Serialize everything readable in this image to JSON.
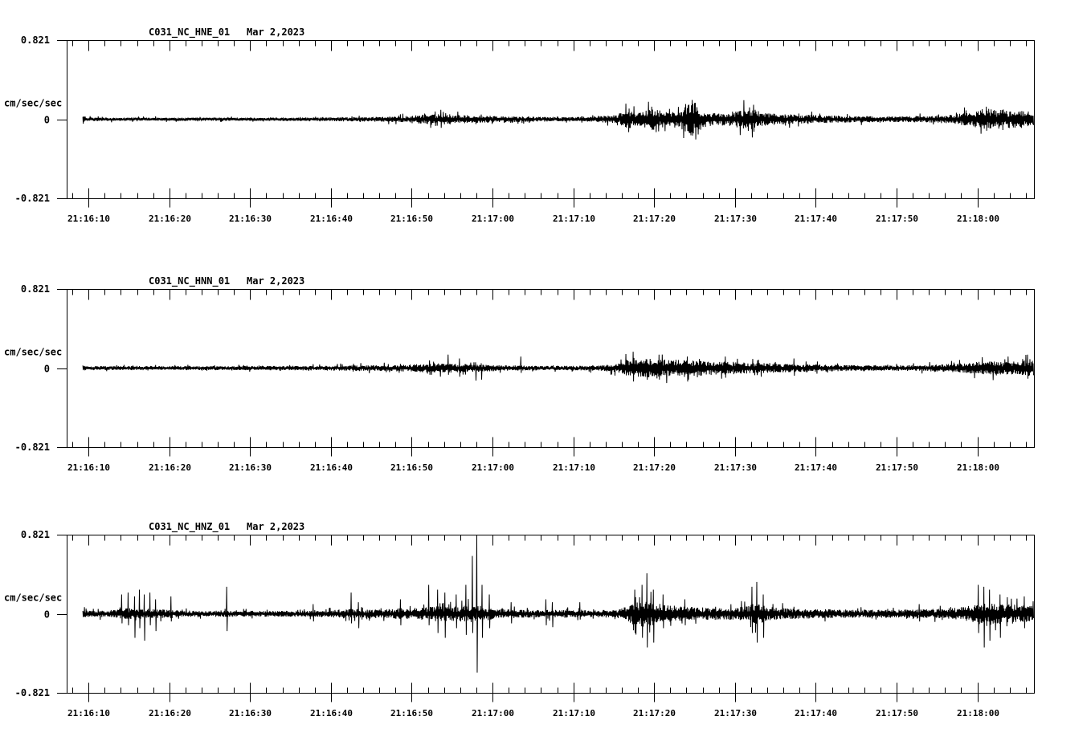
{
  "figure": {
    "background": "#ffffff",
    "trace_color": "#000000",
    "axis_color": "#000000"
  },
  "chart_data": {
    "type": "line",
    "subtype": "seismogram-3-component",
    "ylabel": "cm/sec/sec",
    "ylim": [
      -0.821,
      0.821
    ],
    "ytick_labels": [
      "0.821",
      "0",
      "-0.821"
    ],
    "xtick_labels": [
      "21:16:10",
      "21:16:20",
      "21:16:30",
      "21:16:40",
      "21:16:50",
      "21:17:00",
      "21:17:10",
      "21:17:20",
      "21:17:30",
      "21:17:40",
      "21:17:50",
      "21:18:00"
    ],
    "time_window_sec": 119.7,
    "first_major_tick_sec": 2.7,
    "major_tick_interval_sec": 10,
    "minor_tick_interval_sec": 2,
    "grid": false,
    "legend": false,
    "panels": [
      {
        "title": "C031_NC_HNE_01",
        "date": "Mar 2,2023",
        "seed": 7,
        "trace_start_sec": 2.0,
        "envelope": [
          [
            2.0,
            0.05
          ],
          [
            2.5,
            0.02
          ],
          [
            6,
            0.017
          ],
          [
            12,
            0.016
          ],
          [
            20,
            0.017
          ],
          [
            28,
            0.018
          ],
          [
            34,
            0.022
          ],
          [
            38,
            0.026
          ],
          [
            42,
            0.032
          ],
          [
            44.5,
            0.05
          ],
          [
            46.5,
            0.055
          ],
          [
            48.5,
            0.048
          ],
          [
            51,
            0.038
          ],
          [
            54,
            0.032
          ],
          [
            58,
            0.026
          ],
          [
            62,
            0.024
          ],
          [
            65,
            0.028
          ],
          [
            68,
            0.045
          ],
          [
            69.5,
            0.1
          ],
          [
            70.5,
            0.07
          ],
          [
            72.5,
            0.115
          ],
          [
            74,
            0.08
          ],
          [
            76,
            0.09
          ],
          [
            77.5,
            0.19
          ],
          [
            78.5,
            0.1
          ],
          [
            80,
            0.062
          ],
          [
            82,
            0.07
          ],
          [
            84.5,
            0.125
          ],
          [
            86,
            0.07
          ],
          [
            88,
            0.055
          ],
          [
            91,
            0.046
          ],
          [
            94,
            0.04
          ],
          [
            98,
            0.033
          ],
          [
            103,
            0.03
          ],
          [
            107,
            0.036
          ],
          [
            110,
            0.05
          ],
          [
            112,
            0.08
          ],
          [
            113.5,
            0.11
          ],
          [
            115,
            0.1
          ],
          [
            116.5,
            0.092
          ],
          [
            118,
            0.086
          ],
          [
            119.7,
            0.08
          ]
        ],
        "spikes": [
          [
            45.6,
            0.08,
            -0.07
          ],
          [
            69.6,
            0.11,
            -0.09
          ],
          [
            72.4,
            0.13,
            -0.11
          ],
          [
            77.4,
            0.2,
            -0.17
          ],
          [
            77.8,
            0.17,
            -0.21
          ],
          [
            85.0,
            0.15,
            -0.13
          ],
          [
            113.8,
            0.13,
            -0.12
          ]
        ]
      },
      {
        "title": "C031_NC_HNN_01",
        "date": "Mar 2,2023",
        "seed": 13,
        "trace_start_sec": 2.0,
        "envelope": [
          [
            2.0,
            0.04
          ],
          [
            2.5,
            0.022
          ],
          [
            8,
            0.02
          ],
          [
            14,
            0.02
          ],
          [
            22,
            0.022
          ],
          [
            30,
            0.024
          ],
          [
            36,
            0.028
          ],
          [
            40,
            0.032
          ],
          [
            43,
            0.04
          ],
          [
            45.5,
            0.05
          ],
          [
            47.5,
            0.047
          ],
          [
            50,
            0.04
          ],
          [
            52,
            0.035
          ],
          [
            55,
            0.028
          ],
          [
            59,
            0.023
          ],
          [
            63,
            0.023
          ],
          [
            66,
            0.03
          ],
          [
            68.5,
            0.05
          ],
          [
            70,
            0.12
          ],
          [
            71,
            0.09
          ],
          [
            72.5,
            0.1
          ],
          [
            74,
            0.09
          ],
          [
            76,
            0.085
          ],
          [
            78,
            0.08
          ],
          [
            80,
            0.075
          ],
          [
            82,
            0.066
          ],
          [
            84,
            0.06
          ],
          [
            86,
            0.056
          ],
          [
            88,
            0.05
          ],
          [
            91,
            0.042
          ],
          [
            94,
            0.036
          ],
          [
            98,
            0.03
          ],
          [
            102,
            0.028
          ],
          [
            106,
            0.032
          ],
          [
            110,
            0.045
          ],
          [
            112,
            0.06
          ],
          [
            114,
            0.07
          ],
          [
            116,
            0.066
          ],
          [
            118,
            0.07
          ],
          [
            119.7,
            0.088
          ]
        ],
        "spikes": [
          [
            44.9,
            0.08,
            -0.07
          ],
          [
            47.2,
            0.14,
            -0.07
          ],
          [
            48.6,
            0.1,
            -0.09
          ],
          [
            50.6,
            0.06,
            -0.13
          ],
          [
            51.3,
            0.05,
            -0.12
          ],
          [
            56.2,
            0.12,
            -0.05
          ],
          [
            70.1,
            0.17,
            -0.14
          ],
          [
            73.3,
            0.14,
            -0.12
          ],
          [
            76.8,
            0.12,
            -0.14
          ],
          [
            81.5,
            0.12,
            -0.1
          ],
          [
            90.0,
            0.1,
            -0.08
          ],
          [
            118.9,
            0.14,
            -0.11
          ]
        ]
      },
      {
        "title": "C031_NC_HNZ_01",
        "date": "Mar 2,2023",
        "seed": 23,
        "trace_start_sec": 2.0,
        "envelope": [
          [
            2.0,
            0.05
          ],
          [
            2.5,
            0.032
          ],
          [
            5,
            0.036
          ],
          [
            6.5,
            0.05
          ],
          [
            8,
            0.06
          ],
          [
            9.5,
            0.056
          ],
          [
            11,
            0.05
          ],
          [
            12.5,
            0.04
          ],
          [
            14,
            0.034
          ],
          [
            17,
            0.03
          ],
          [
            20,
            0.032
          ],
          [
            24,
            0.03
          ],
          [
            28,
            0.031
          ],
          [
            32,
            0.036
          ],
          [
            34.5,
            0.05
          ],
          [
            36,
            0.054
          ],
          [
            38,
            0.042
          ],
          [
            40,
            0.046
          ],
          [
            41.5,
            0.06
          ],
          [
            43,
            0.052
          ],
          [
            44.5,
            0.07
          ],
          [
            46,
            0.08
          ],
          [
            48,
            0.076
          ],
          [
            50,
            0.09
          ],
          [
            51.5,
            0.08
          ],
          [
            53,
            0.052
          ],
          [
            56,
            0.042
          ],
          [
            59,
            0.04
          ],
          [
            62,
            0.038
          ],
          [
            65,
            0.036
          ],
          [
            68,
            0.042
          ],
          [
            69.5,
            0.08
          ],
          [
            70.5,
            0.12
          ],
          [
            71.5,
            0.15
          ],
          [
            72.3,
            0.13
          ],
          [
            73.5,
            0.1
          ],
          [
            75,
            0.085
          ],
          [
            77,
            0.072
          ],
          [
            79,
            0.066
          ],
          [
            81,
            0.062
          ],
          [
            83,
            0.062
          ],
          [
            84.5,
            0.09
          ],
          [
            85.3,
            0.115
          ],
          [
            86.5,
            0.08
          ],
          [
            88,
            0.062
          ],
          [
            91,
            0.052
          ],
          [
            94,
            0.046
          ],
          [
            98,
            0.042
          ],
          [
            102,
            0.042
          ],
          [
            106,
            0.046
          ],
          [
            109,
            0.056
          ],
          [
            111,
            0.07
          ],
          [
            112.5,
            0.1
          ],
          [
            113.7,
            0.13
          ],
          [
            115,
            0.11
          ],
          [
            116.5,
            0.1
          ],
          [
            118,
            0.09
          ],
          [
            119.7,
            0.085
          ]
        ],
        "spikes": [
          [
            6.8,
            0.2,
            -0.1
          ],
          [
            7.6,
            0.22,
            -0.12
          ],
          [
            8.4,
            0.18,
            -0.25
          ],
          [
            9.0,
            0.25,
            -0.15
          ],
          [
            9.6,
            0.2,
            -0.28
          ],
          [
            10.3,
            0.22,
            -0.12
          ],
          [
            11.0,
            0.15,
            -0.18
          ],
          [
            12.9,
            0.18,
            -0.08
          ],
          [
            19.8,
            0.28,
            -0.18
          ],
          [
            30.5,
            0.1,
            -0.08
          ],
          [
            35.2,
            0.22,
            -0.1
          ],
          [
            36.1,
            0.12,
            -0.15
          ],
          [
            41.3,
            0.15,
            -0.12
          ],
          [
            44.8,
            0.3,
            -0.12
          ],
          [
            45.9,
            0.25,
            -0.2
          ],
          [
            46.8,
            0.22,
            -0.25
          ],
          [
            48.2,
            0.2,
            -0.15
          ],
          [
            49.4,
            0.3,
            -0.22
          ],
          [
            50.2,
            0.6,
            -0.2
          ],
          [
            50.75,
            0.82,
            -0.61
          ],
          [
            51.4,
            0.3,
            -0.25
          ],
          [
            52.3,
            0.2,
            -0.15
          ],
          [
            55.0,
            0.12,
            -0.1
          ],
          [
            59.3,
            0.15,
            -0.12
          ],
          [
            60.1,
            0.12,
            -0.14
          ],
          [
            63.5,
            0.12,
            -0.06
          ],
          [
            70.3,
            0.25,
            -0.2
          ],
          [
            71.2,
            0.3,
            -0.25
          ],
          [
            71.8,
            0.42,
            -0.35
          ],
          [
            72.6,
            0.25,
            -0.3
          ],
          [
            73.8,
            0.2,
            -0.15
          ],
          [
            76.5,
            0.15,
            -0.12
          ],
          [
            84.8,
            0.28,
            -0.2
          ],
          [
            85.4,
            0.33,
            -0.3
          ],
          [
            86.2,
            0.2,
            -0.25
          ],
          [
            105.5,
            0.1,
            -0.08
          ],
          [
            112.8,
            0.3,
            -0.2
          ],
          [
            113.5,
            0.28,
            -0.35
          ],
          [
            114.2,
            0.25,
            -0.28
          ],
          [
            115.5,
            0.2,
            -0.25
          ],
          [
            118.5,
            0.18,
            -0.15
          ]
        ]
      }
    ]
  }
}
